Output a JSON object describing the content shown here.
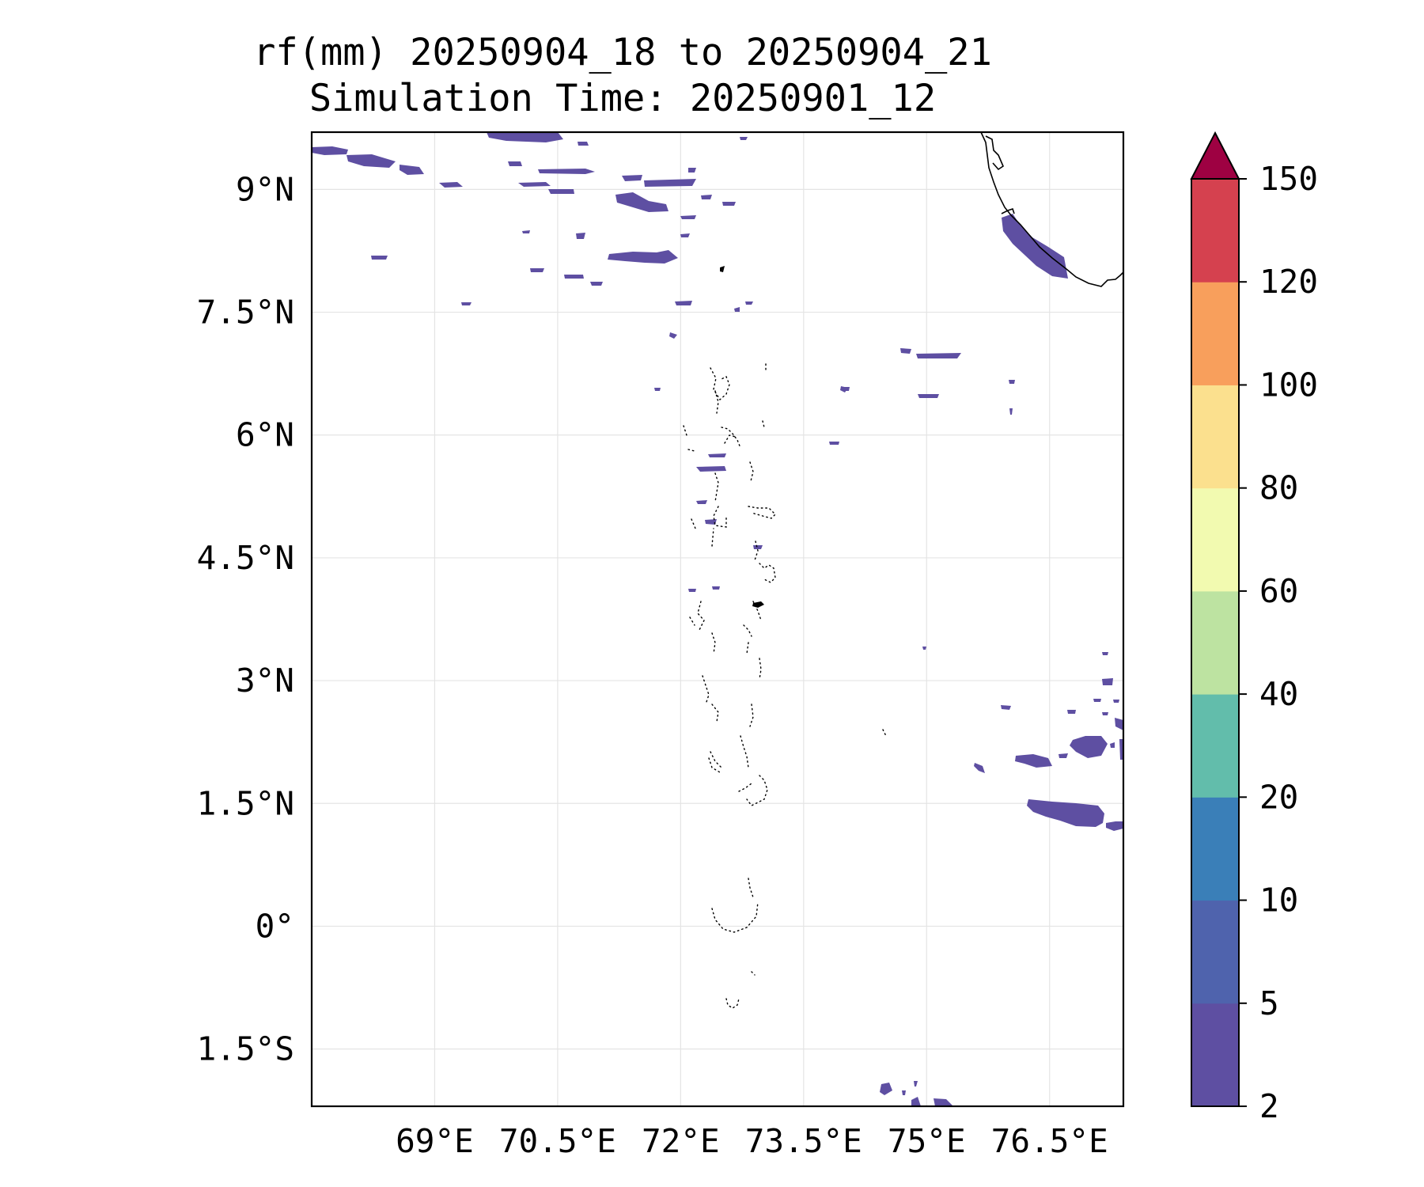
{
  "title": {
    "line1": "rf(mm) 20250904_18 to 20250904_21",
    "line2": "Simulation Time: 20250901_12"
  },
  "map": {
    "lon_range": [
      67.5,
      77.4
    ],
    "lat_range": [
      -2.2,
      9.7
    ],
    "lon_ticks": [
      {
        "value": 69.0,
        "label": "69°E"
      },
      {
        "value": 70.5,
        "label": "70.5°E"
      },
      {
        "value": 72.0,
        "label": "72°E"
      },
      {
        "value": 73.5,
        "label": "73.5°E"
      },
      {
        "value": 75.0,
        "label": "75°E"
      },
      {
        "value": 76.5,
        "label": "76.5°E"
      }
    ],
    "lat_ticks": [
      {
        "value": 9.0,
        "label": "9°N"
      },
      {
        "value": 7.5,
        "label": "7.5°N"
      },
      {
        "value": 6.0,
        "label": "6°N"
      },
      {
        "value": 4.5,
        "label": "4.5°N"
      },
      {
        "value": 3.0,
        "label": "3°N"
      },
      {
        "value": 1.5,
        "label": "1.5°N"
      },
      {
        "value": 0.0,
        "label": "0°"
      },
      {
        "value": -1.5,
        "label": "1.5°S"
      }
    ],
    "grid": true,
    "rain_color": "#5e4fa2",
    "coastline_color": "#000000"
  },
  "colorbar": {
    "levels": [
      "2",
      "5",
      "10",
      "20",
      "40",
      "60",
      "80",
      "100",
      "120",
      "150"
    ],
    "colors": [
      "#5e4fa2",
      "#4f63ad",
      "#3a7fb8",
      "#62bdab",
      "#bde3a1",
      "#f2fab0",
      "#fbe08e",
      "#f89f5c",
      "#d5414f"
    ],
    "extend_color": "#9e0142",
    "extend": "max"
  }
}
